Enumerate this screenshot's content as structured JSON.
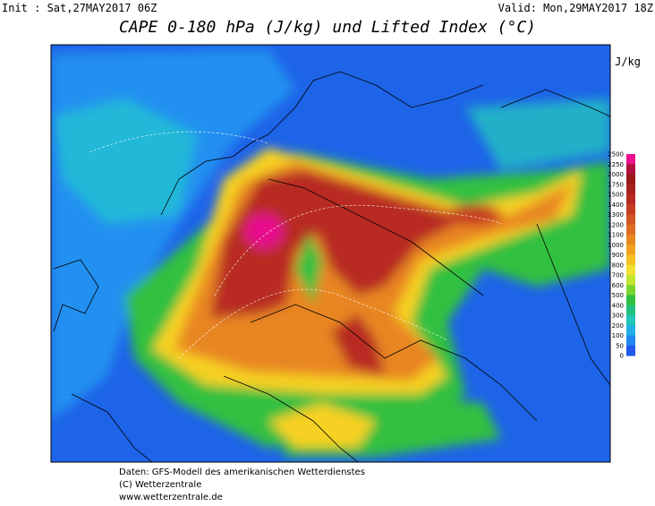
{
  "header": {
    "init": "Init : Sat,27MAY2017 06Z",
    "valid": "Valid: Mon,29MAY2017 18Z",
    "title": "CAPE 0-180 hPa (J/kg) und Lifted Index (°C)"
  },
  "colorbar": {
    "unit": "J/kg",
    "levels": [
      2500,
      2250,
      2000,
      1750,
      1500,
      1400,
      1300,
      1200,
      1100,
      1000,
      900,
      800,
      700,
      600,
      500,
      400,
      300,
      200,
      100,
      50,
      0
    ],
    "colors": [
      "#e8108c",
      "#b0103c",
      "#981818",
      "#a82020",
      "#b82a20",
      "#c63c20",
      "#d25420",
      "#de6c20",
      "#e88620",
      "#f0a220",
      "#f6c020",
      "#f4e030",
      "#c4e430",
      "#7cd430",
      "#30c040",
      "#20c080",
      "#20c4b8",
      "#20b0e4",
      "#2088f0",
      "#2058ec"
    ]
  },
  "footer": {
    "lines": [
      "Daten: GFS-Modell des amerikanischen Wetterdienstes",
      "(C) Wetterzentrale",
      "www.wetterzentrale.de"
    ]
  }
}
